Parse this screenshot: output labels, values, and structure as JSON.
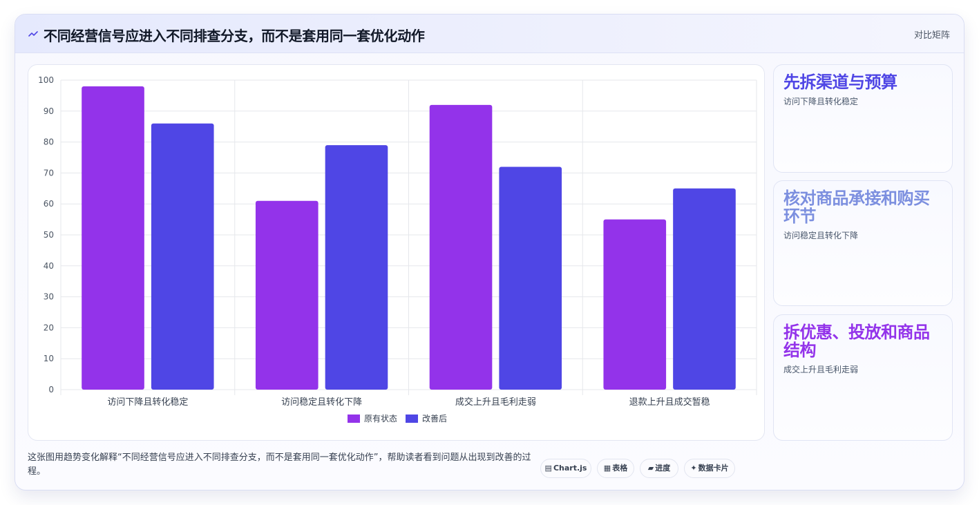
{
  "header": {
    "title": "不同经营信号应进入不同排查分支，而不是套用同一套优化动作",
    "badge": "对比矩阵",
    "icon": "trend-icon"
  },
  "chart_data": {
    "type": "bar",
    "categories": [
      "访问下降且转化稳定",
      "访问稳定且转化下降",
      "成交上升且毛利走弱",
      "退款上升且成交暂稳"
    ],
    "series": [
      {
        "name": "原有状态",
        "values": [
          98,
          61,
          92,
          55
        ],
        "color": "#9333ea"
      },
      {
        "name": "改善后",
        "values": [
          86,
          79,
          72,
          65
        ],
        "color": "#4f46e5"
      }
    ],
    "ylim": [
      0,
      100
    ],
    "yticks": [
      0,
      10,
      20,
      30,
      40,
      50,
      60,
      70,
      80,
      90,
      100
    ],
    "grid": true,
    "legend_position": "bottom"
  },
  "side_cards": [
    {
      "title": "先拆渠道与预算",
      "subtitle": "访问下降且转化稳定",
      "color": "#4f46e5"
    },
    {
      "title": "核对商品承接和购买环节",
      "subtitle": "访问稳定且转化下降",
      "color": "#7c8fdf"
    },
    {
      "title": "拆优惠、投放和商品结构",
      "subtitle": "成交上升且毛利走弱",
      "color": "#9333ea"
    }
  ],
  "footer": {
    "caption": "这张图用趋势变化解释“不同经营信号应进入不同排查分支，而不是套用同一套优化动作”，帮助读者看到问题从出现到改善的过程。",
    "chips": [
      {
        "icon": "▤",
        "icon_name": "chart-icon",
        "label": "Chart.js"
      },
      {
        "icon": "▦",
        "icon_name": "table-icon",
        "label": "表格"
      },
      {
        "icon": "▰",
        "icon_name": "progress-icon",
        "label": "进度"
      },
      {
        "icon": "✦",
        "icon_name": "card-icon",
        "label": "数据卡片"
      }
    ]
  }
}
